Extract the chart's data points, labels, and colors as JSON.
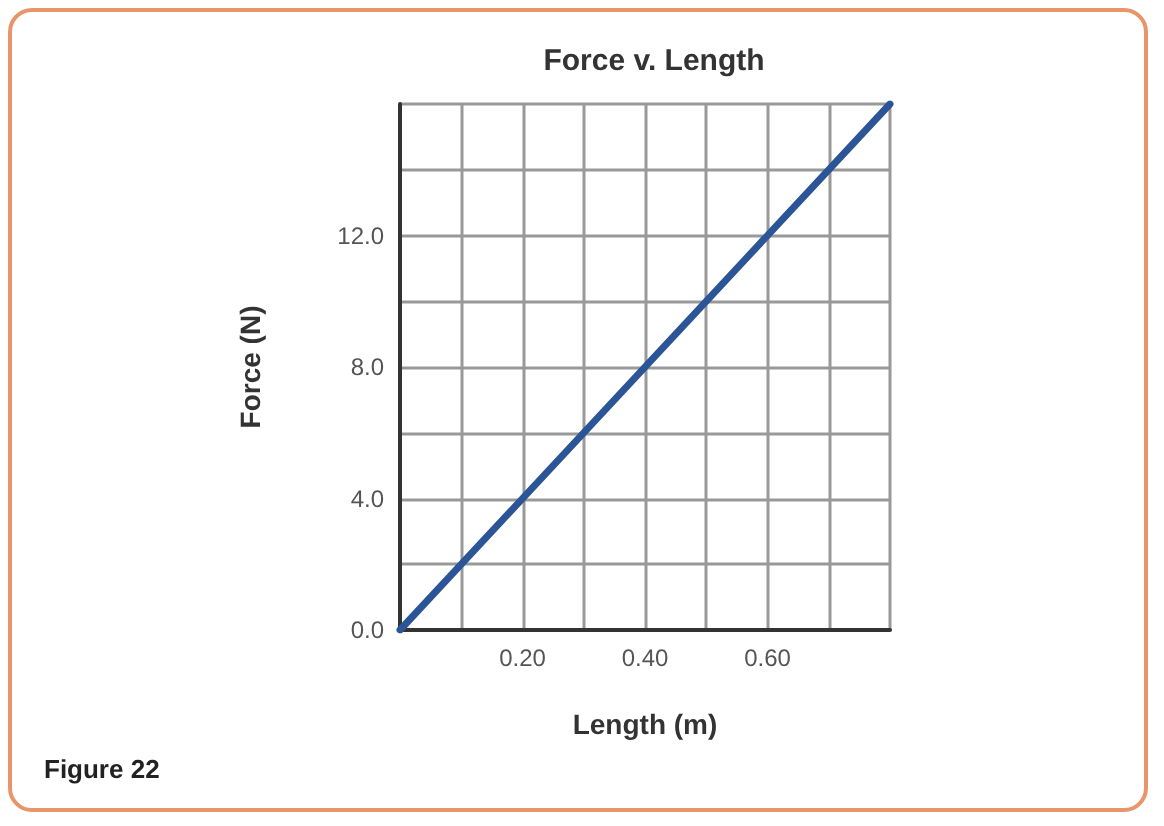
{
  "chart_data": {
    "type": "line",
    "title": "Force v. Length",
    "xlabel": "Length (m)",
    "ylabel": "Force (N)",
    "annotations": [
      "Figure 22"
    ],
    "x": [
      0,
      0.8
    ],
    "series": [
      {
        "color": "#2b5597",
        "values": [
          0,
          16
        ]
      }
    ],
    "xlim": [
      0,
      0.8
    ],
    "xticks": [
      {
        "value": 0,
        "label": null
      },
      {
        "value": 0.1,
        "label": null
      },
      {
        "value": 0.2,
        "label": "0.20"
      },
      {
        "value": 0.3,
        "label": null
      },
      {
        "value": 0.4,
        "label": "0.40"
      },
      {
        "value": 0.5,
        "label": null
      },
      {
        "value": 0.6,
        "label": "0.60"
      },
      {
        "value": 0.7,
        "label": null
      },
      {
        "value": 0.8,
        "label": null
      }
    ],
    "ylim": [
      0,
      16
    ],
    "yticks": [
      {
        "value": 0,
        "label": "0.0"
      },
      {
        "value": 2,
        "label": null
      },
      {
        "value": 4,
        "label": "4.0"
      },
      {
        "value": 6,
        "label": null
      },
      {
        "value": 8,
        "label": "8.0"
      },
      {
        "value": 10,
        "label": null
      },
      {
        "value": 12,
        "label": "12.0"
      },
      {
        "value": 14,
        "label": null
      },
      {
        "value": 16,
        "label": null
      }
    ],
    "grid": true,
    "marker": "none",
    "line_style": "solid"
  }
}
